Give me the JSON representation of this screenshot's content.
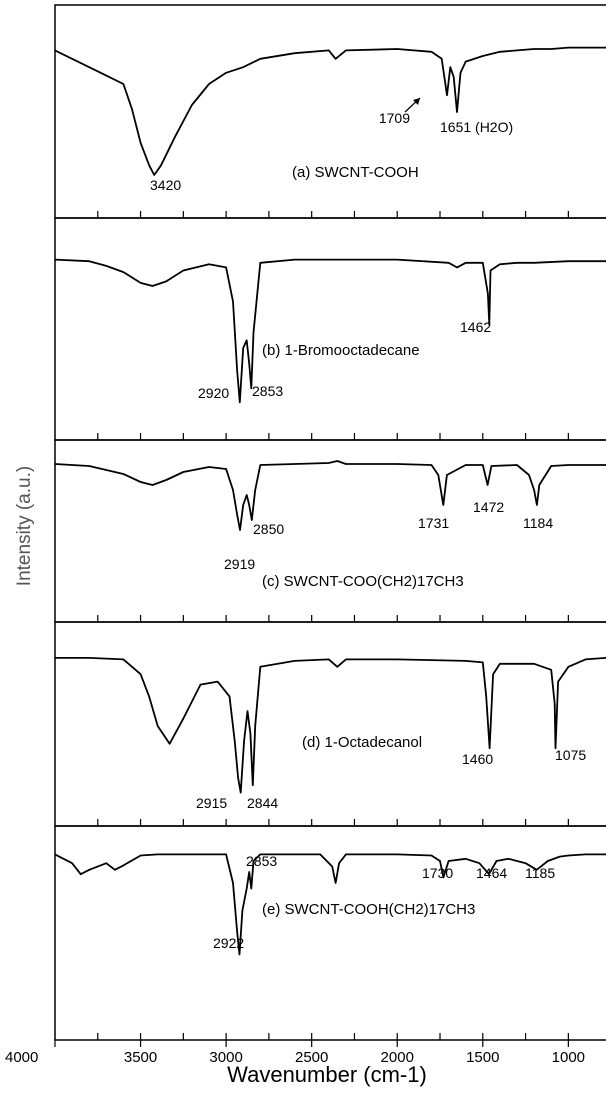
{
  "figure": {
    "xlabel": "Wavenumber (cm-1)",
    "ylabel": "Intensity (a.u.)",
    "x_ticks": [
      "4000",
      "3500",
      "3000",
      "2500",
      "2000",
      "1500",
      "1000"
    ]
  },
  "chart_data": [
    {
      "type": "line",
      "panel": "a",
      "annotation": "(a) SWCNT-COOH",
      "xlim": [
        4000,
        780
      ],
      "series": [
        {
          "x": [
            4000,
            3900,
            3800,
            3700,
            3600,
            3550,
            3500,
            3450,
            3420,
            3380,
            3300,
            3200,
            3100,
            3000,
            2900,
            2800,
            2600,
            2400,
            2360,
            2300,
            2000,
            1800,
            1740,
            1709,
            1690,
            1670,
            1651,
            1630,
            1600,
            1500,
            1400,
            1300,
            1200,
            1100,
            1000,
            900,
            780
          ],
          "y": [
            0.06,
            0.12,
            0.18,
            0.24,
            0.3,
            0.48,
            0.72,
            0.88,
            0.95,
            0.88,
            0.68,
            0.45,
            0.3,
            0.22,
            0.18,
            0.12,
            0.08,
            0.06,
            0.12,
            0.06,
            0.05,
            0.07,
            0.12,
            0.38,
            0.18,
            0.25,
            0.5,
            0.22,
            0.14,
            0.1,
            0.07,
            0.06,
            0.05,
            0.05,
            0.04,
            0.04,
            0.04
          ]
        }
      ],
      "peak_labels": [
        "3420",
        "1709",
        "1651 (H2O)"
      ]
    },
    {
      "type": "line",
      "panel": "b",
      "annotation": "(b) 1-Bromooctadecane",
      "xlim": [
        4000,
        780
      ],
      "series": [
        {
          "x": [
            4000,
            3800,
            3700,
            3600,
            3500,
            3430,
            3350,
            3250,
            3100,
            3000,
            2960,
            2935,
            2920,
            2900,
            2880,
            2865,
            2853,
            2840,
            2800,
            2600,
            2400,
            2000,
            1700,
            1650,
            1600,
            1500,
            1470,
            1462,
            1455,
            1400,
            1300,
            1200,
            1000,
            780
          ],
          "y": [
            0.03,
            0.04,
            0.07,
            0.11,
            0.18,
            0.2,
            0.17,
            0.1,
            0.06,
            0.08,
            0.3,
            0.75,
            0.95,
            0.6,
            0.55,
            0.7,
            0.86,
            0.5,
            0.05,
            0.03,
            0.03,
            0.03,
            0.05,
            0.08,
            0.05,
            0.05,
            0.25,
            0.45,
            0.1,
            0.06,
            0.05,
            0.05,
            0.04,
            0.04
          ]
        }
      ],
      "peak_labels": [
        "1462",
        "2920",
        "2853"
      ]
    },
    {
      "type": "line",
      "panel": "c",
      "annotation": "(c) SWCNT-COO(CH2)17CH3",
      "xlim": [
        4000,
        780
      ],
      "series": [
        {
          "x": [
            4000,
            3800,
            3700,
            3600,
            3500,
            3430,
            3350,
            3250,
            3100,
            3000,
            2960,
            2935,
            2919,
            2900,
            2880,
            2865,
            2850,
            2830,
            2800,
            2600,
            2400,
            2350,
            2300,
            2000,
            1800,
            1760,
            1731,
            1710,
            1600,
            1500,
            1472,
            1450,
            1300,
            1230,
            1200,
            1184,
            1170,
            1100,
            1000,
            900,
            780
          ],
          "y": [
            0.04,
            0.06,
            0.1,
            0.14,
            0.22,
            0.25,
            0.2,
            0.12,
            0.07,
            0.09,
            0.3,
            0.55,
            0.7,
            0.45,
            0.35,
            0.45,
            0.6,
            0.3,
            0.05,
            0.04,
            0.03,
            0.01,
            0.04,
            0.04,
            0.05,
            0.15,
            0.45,
            0.15,
            0.05,
            0.05,
            0.25,
            0.06,
            0.05,
            0.15,
            0.3,
            0.45,
            0.25,
            0.06,
            0.05,
            0.05,
            0.05
          ]
        }
      ],
      "peak_labels": [
        "1731",
        "1472",
        "1184",
        "2919",
        "2850"
      ]
    },
    {
      "type": "line",
      "panel": "d",
      "annotation": "(d) 1-Octadecanol",
      "xlim": [
        4000,
        780
      ],
      "series": [
        {
          "x": [
            4000,
            3800,
            3600,
            3500,
            3450,
            3400,
            3330,
            3250,
            3150,
            3050,
            2980,
            2950,
            2930,
            2915,
            2895,
            2875,
            2858,
            2844,
            2830,
            2800,
            2600,
            2400,
            2350,
            2300,
            2000,
            1600,
            1500,
            1480,
            1460,
            1440,
            1400,
            1200,
            1100,
            1080,
            1075,
            1060,
            1000,
            900,
            780
          ],
          "y": [
            0.04,
            0.04,
            0.05,
            0.15,
            0.3,
            0.5,
            0.62,
            0.45,
            0.22,
            0.2,
            0.3,
            0.6,
            0.85,
            0.95,
            0.6,
            0.4,
            0.55,
            0.9,
            0.5,
            0.1,
            0.06,
            0.05,
            0.1,
            0.05,
            0.05,
            0.06,
            0.07,
            0.3,
            0.65,
            0.15,
            0.08,
            0.08,
            0.12,
            0.35,
            0.65,
            0.2,
            0.1,
            0.05,
            0.04
          ]
        }
      ],
      "peak_labels": [
        "1460",
        "1075",
        "2915",
        "2844"
      ]
    },
    {
      "type": "line",
      "panel": "e",
      "annotation": "(e) SWCNT-COOH(CH2)17CH3",
      "xlim": [
        4000,
        780
      ],
      "series": [
        {
          "x": [
            4000,
            3900,
            3850,
            3800,
            3700,
            3650,
            3600,
            3500,
            3400,
            3300,
            3000,
            2960,
            2935,
            2922,
            2905,
            2880,
            2865,
            2853,
            2840,
            2800,
            2600,
            2450,
            2380,
            2360,
            2340,
            2300,
            2000,
            1800,
            1750,
            1730,
            1700,
            1600,
            1520,
            1464,
            1420,
            1350,
            1250,
            1185,
            1120,
            1050,
            1000,
            900,
            780
          ],
          "y": [
            0.04,
            0.12,
            0.22,
            0.18,
            0.12,
            0.18,
            0.14,
            0.05,
            0.04,
            0.04,
            0.04,
            0.3,
            0.75,
            0.95,
            0.55,
            0.35,
            0.2,
            0.35,
            0.1,
            0.04,
            0.04,
            0.04,
            0.15,
            0.3,
            0.12,
            0.04,
            0.04,
            0.05,
            0.1,
            0.25,
            0.1,
            0.08,
            0.12,
            0.22,
            0.1,
            0.08,
            0.12,
            0.18,
            0.1,
            0.06,
            0.05,
            0.04,
            0.04
          ]
        }
      ],
      "peak_labels": [
        "1730",
        "1464",
        "1185",
        "2853",
        "2922"
      ]
    }
  ]
}
